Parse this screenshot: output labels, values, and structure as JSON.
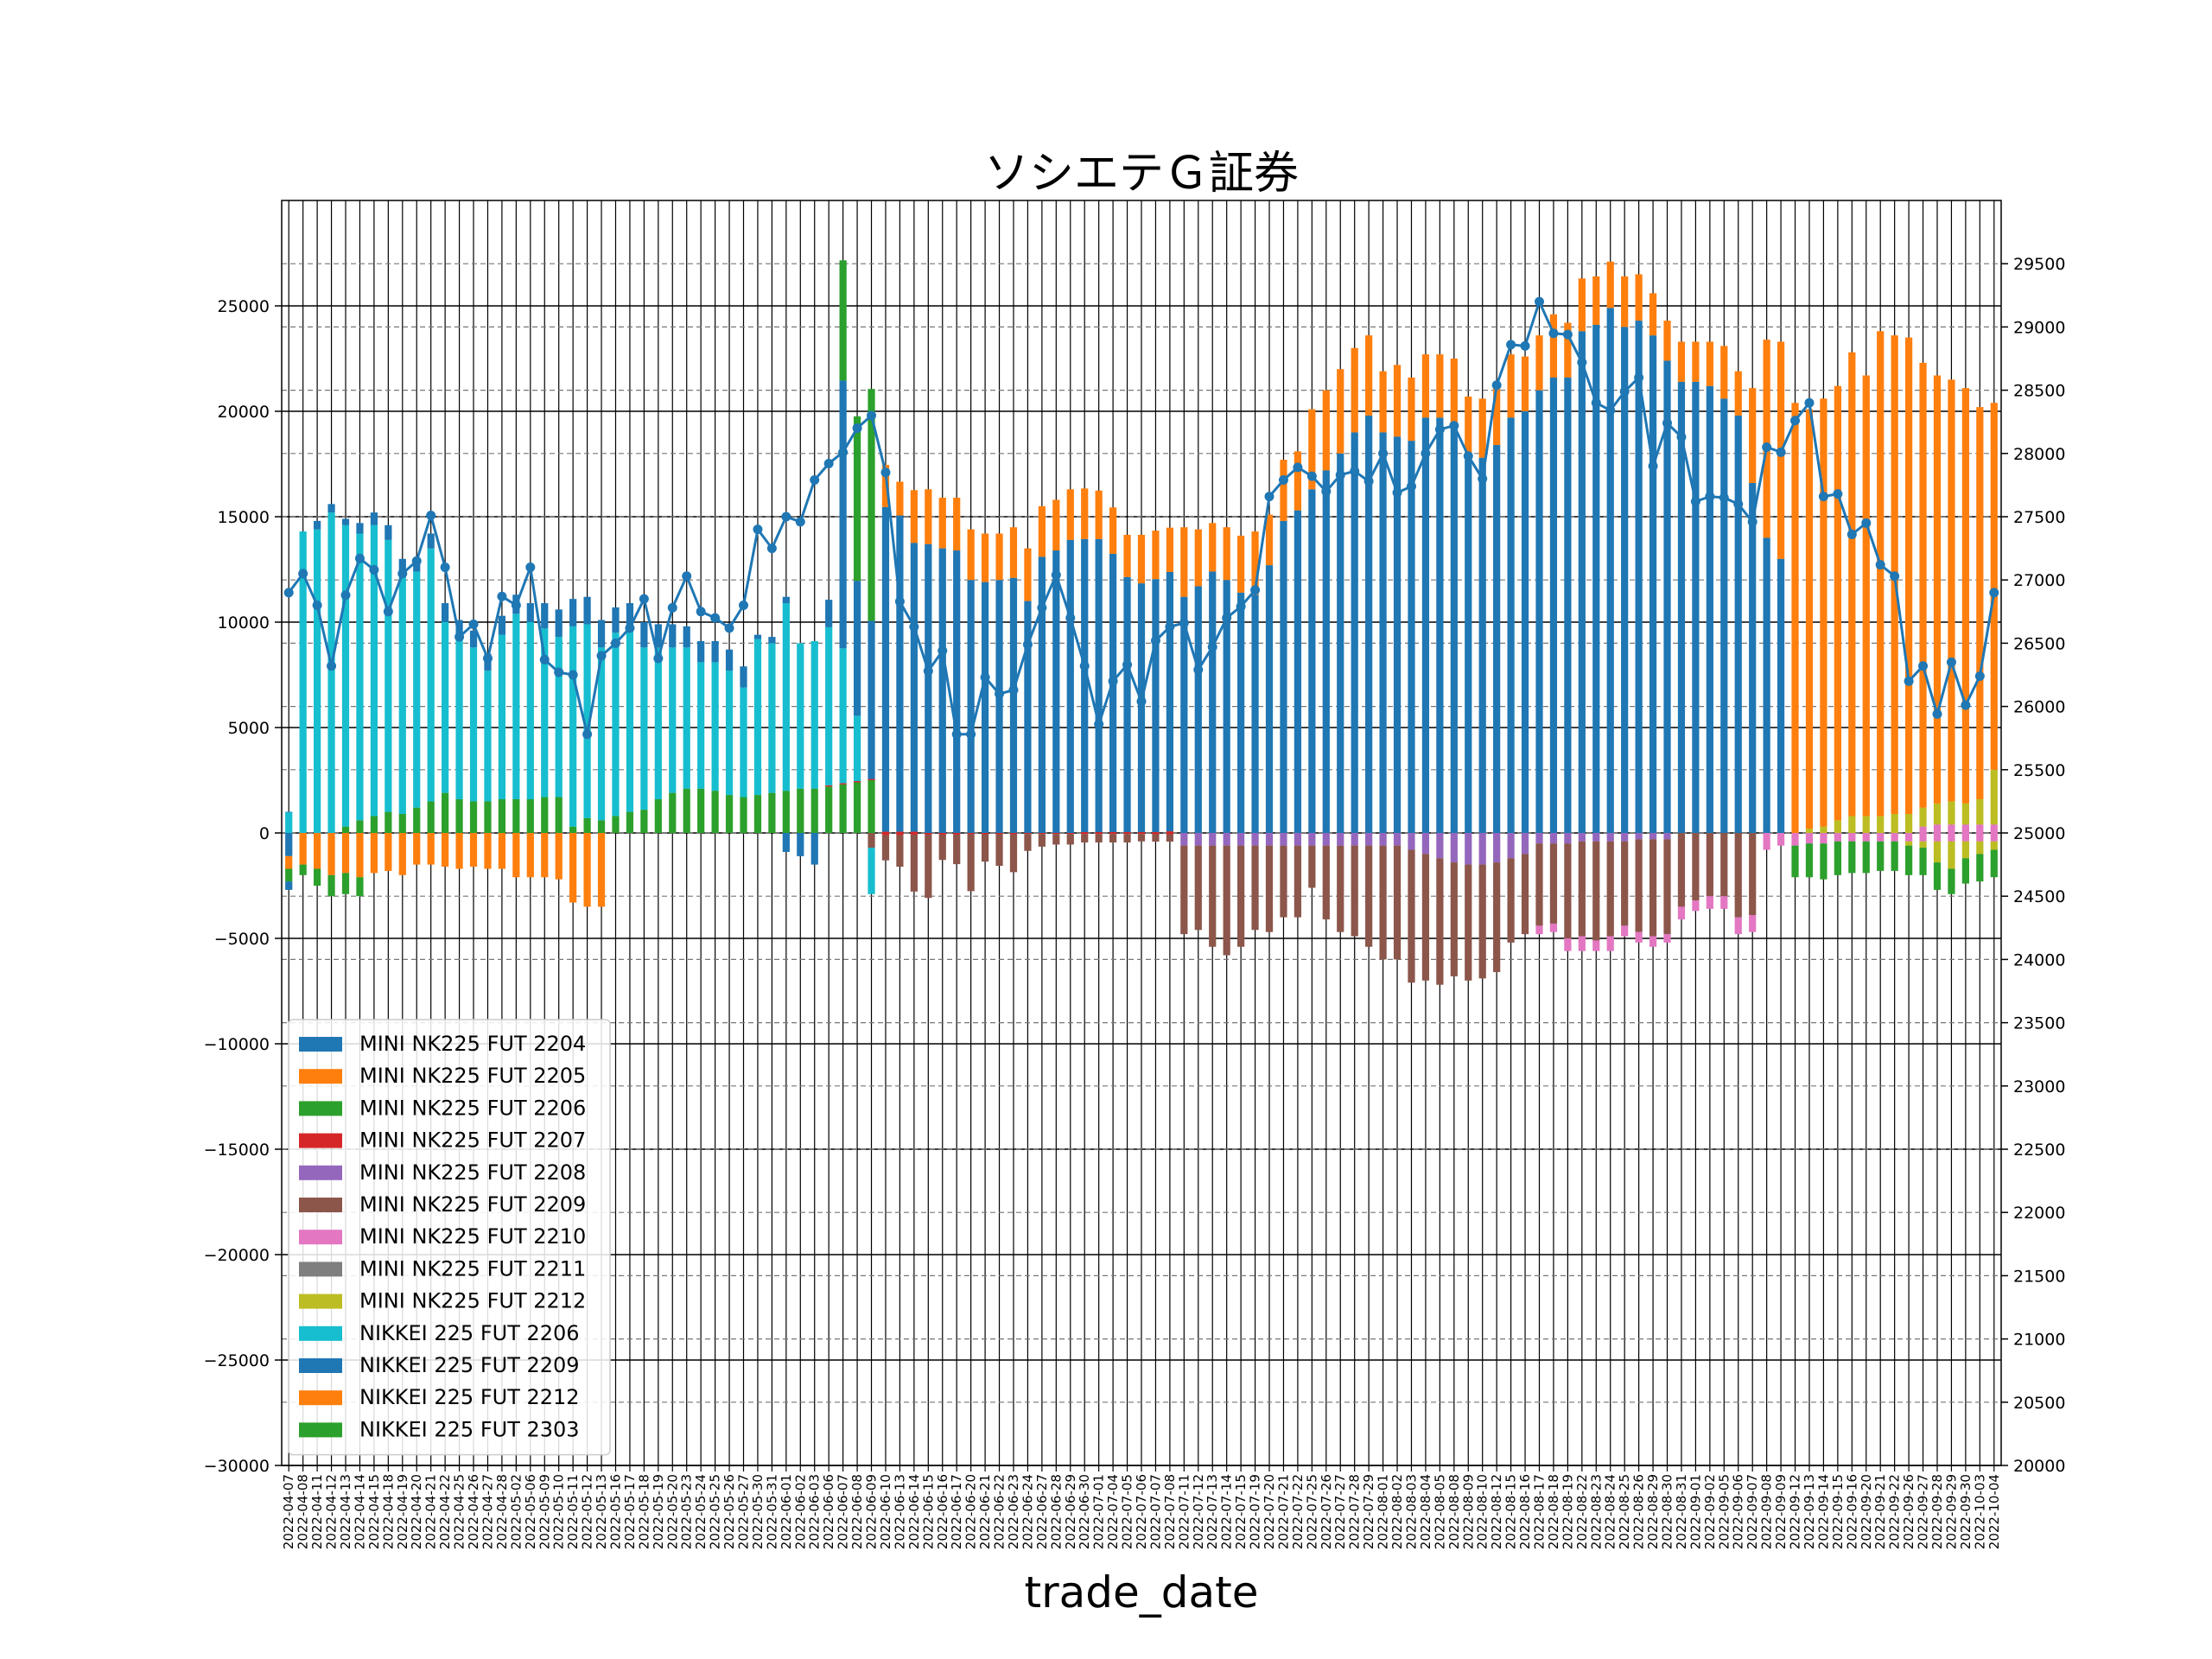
{
  "chart_data": {
    "type": "bar",
    "title": "ソシエテＧ証券",
    "xlabel": "trade_date",
    "ylabel": "",
    "ylim": [
      -30000,
      30000
    ],
    "y2lim": [
      20000,
      30000
    ],
    "y_ticks": [
      -30000,
      -25000,
      -20000,
      -15000,
      -10000,
      -5000,
      0,
      5000,
      10000,
      15000,
      20000,
      25000
    ],
    "y2_ticks": [
      20000,
      20500,
      21000,
      21500,
      22000,
      22500,
      23000,
      23500,
      24000,
      24500,
      25000,
      25500,
      26000,
      26500,
      27000,
      27500,
      28000,
      28500,
      29000,
      29500
    ],
    "grid": true,
    "legend_position": "lower-left",
    "stacked": true,
    "categories": [
      "2022-04-07",
      "2022-04-08",
      "2022-04-11",
      "2022-04-12",
      "2022-04-13",
      "2022-04-14",
      "2022-04-15",
      "2022-04-18",
      "2022-04-19",
      "2022-04-20",
      "2022-04-21",
      "2022-04-22",
      "2022-04-25",
      "2022-04-26",
      "2022-04-27",
      "2022-04-28",
      "2022-05-02",
      "2022-05-06",
      "2022-05-09",
      "2022-05-10",
      "2022-05-11",
      "2022-05-12",
      "2022-05-13",
      "2022-05-16",
      "2022-05-17",
      "2022-05-18",
      "2022-05-19",
      "2022-05-20",
      "2022-05-23",
      "2022-05-24",
      "2022-05-25",
      "2022-05-26",
      "2022-05-27",
      "2022-05-30",
      "2022-05-31",
      "2022-06-01",
      "2022-06-02",
      "2022-06-03",
      "2022-06-06",
      "2022-06-07",
      "2022-06-08",
      "2022-06-09",
      "2022-06-10",
      "2022-06-13",
      "2022-06-14",
      "2022-06-15",
      "2022-06-16",
      "2022-06-17",
      "2022-06-20",
      "2022-06-21",
      "2022-06-22",
      "2022-06-23",
      "2022-06-24",
      "2022-06-27",
      "2022-06-28",
      "2022-06-29",
      "2022-06-30",
      "2022-07-01",
      "2022-07-04",
      "2022-07-05",
      "2022-07-06",
      "2022-07-07",
      "2022-07-08",
      "2022-07-11",
      "2022-07-12",
      "2022-07-13",
      "2022-07-14",
      "2022-07-15",
      "2022-07-19",
      "2022-07-20",
      "2022-07-21",
      "2022-07-22",
      "2022-07-25",
      "2022-07-26",
      "2022-07-27",
      "2022-07-28",
      "2022-07-29",
      "2022-08-01",
      "2022-08-02",
      "2022-08-03",
      "2022-08-04",
      "2022-08-05",
      "2022-08-08",
      "2022-08-09",
      "2022-08-10",
      "2022-08-12",
      "2022-08-15",
      "2022-08-16",
      "2022-08-17",
      "2022-08-18",
      "2022-08-19",
      "2022-08-22",
      "2022-08-23",
      "2022-08-24",
      "2022-08-25",
      "2022-08-26",
      "2022-08-29",
      "2022-08-30",
      "2022-08-31",
      "2022-09-01",
      "2022-09-02",
      "2022-09-05",
      "2022-09-06",
      "2022-09-07",
      "2022-09-08",
      "2022-09-09",
      "2022-09-12",
      "2022-09-13",
      "2022-09-14",
      "2022-09-15",
      "2022-09-16",
      "2022-09-20",
      "2022-09-21",
      "2022-09-22",
      "2022-09-26",
      "2022-09-27",
      "2022-09-28",
      "2022-09-29",
      "2022-09-30",
      "2022-10-03",
      "2022-10-04"
    ],
    "series": [
      {
        "name": "MINI NK225 FUT 2204",
        "color": "#1f77b4",
        "pos": "0:0.7",
        "neg": "0:-1100"
      },
      {
        "name": "MINI NK225 FUT 2205",
        "color": "#ff7f0e",
        "pos": "",
        "neg": "0:-600,1:-1500,2:-1700,3:-2000,4:-1900,5:-2100,6:-1900,7:-1800,8:-2000,9:-1500,10:-1500,11:-1600,12:-1700,13:-1600,14:-1700,15:-1700,16:-2100,17:-2100,18:-2100,19:-2200,20:-3300,21:-3500,22:-3500"
      },
      {
        "name": "MINI NK225 FUT 2206",
        "color": "#2ca02c",
        "pos": "4:300,5:600,6:800,7:1000,8:900,9:1200,10:1500,11:1900,12:1600,13:1500,14:1500,15:1600,16:1600,17:1600,18:1700,19:1700,20:300,21:700,22:600,23:800,24:1000,25:1100,26:1600,27:1900,28:2100,29:2100,30:2000,31:1800,32:1700,33:1800,34:1900,35:2000,36:2100,37:2100,38:2200,39:2300,40:2400,41:2500",
        "neg": "0:-600,1:-500,2:-800,3:-1000,4:-1000,5:-900"
      },
      {
        "name": "MINI NK225 FUT 2207",
        "color": "#d62728",
        "pos": "38:60,39:60,40:60,41:60,42:60,43:60,44:60,56:40,57:40,58:40,59:40,60:40,61:40,62:80",
        "neg": "42:-100,43:-100,44:-80,45:-80,46:-80,47:-80,48:-60,49:-60,50:-60,51:-60,52:-50,53:-50,54:-50,55:-50,56:-50,57:-50,58:-50,59:-50,60:-50,61:-60,62:-60"
      },
      {
        "name": "MINI NK225 FUT 2208",
        "color": "#9467bd",
        "pos": "",
        "neg": "63:-600,64:-600,65:-600,66:-600,67:-600,68:-600,69:-600,70:-600,71:-600,72:-600,73:-600,74:-600,75:-600,76:-600,77:-600,78:-600,79:-800,80:-1000,81:-1200,82:-1400,83:-1500,84:-1500,85:-1400,86:-1200,87:-1000,88:-500,89:-500,90:-500,91:-400,92:-400,93:-400,94:-400,95:-300,96:-300,97:-300"
      },
      {
        "name": "MINI NK225 FUT 2209",
        "color": "#8c564b",
        "pos": "",
        "neg": "41:-700,42:-1200,43:-1500,44:-2700,45:-3000,46:-1200,47:-1400,48:-2700,49:-1300,50:-1500,51:-1800,52:-800,53:-600,54:-500,55:-500,56:-400,57:-400,58:-400,59:-400,60:-350,61:-350,62:-350,63:-4200,64:-4000,65:-4800,66:-5200,67:-4800,68:-4000,69:-4100,70:-3400,71:-3400,72:-2000,73:-3500,74:-4100,75:-4300,76:-4800,77:-5400,78:-5400,79:-6300,80:-6000,81:-6000,82:-5400,83:-5500,84:-5400,85:-5200,86:-4000,87:-3800,88:-3900,89:-3800,90:-4500,91:-4500,92:-4700,93:-4500,94:-4000,95:-4400,96:-4600,97:-4500,98:-3500,99:-3200,100:-3000,101:-3000,102:-4000,103:-3900"
      },
      {
        "name": "MINI NK225 FUT 2210",
        "color": "#e377c2",
        "pos": "115:300,116:400,117:400,118:400,119:400,120:400",
        "neg": "88:-400,89:-400,90:-600,91:-700,92:-500,93:-700,94:-500,95:-500,96:-500,97:-400,98:-600,99:-500,100:-600,101:-600,102:-800,103:-800,104:-800,105:-600,106:-600,107:-500,108:-500,109:-400,110:-400,111:-400,112:-400,113:-400,114:-400,115:-400,116:-400,117:-400,118:-400,119:-400,120:-400"
      },
      {
        "name": "MINI NK225 FUT 2211",
        "color": "#7f7f7f",
        "pos": "",
        "neg": ""
      },
      {
        "name": "MINI NK225 FUT 2212",
        "color": "#bcbd22",
        "pos": "107:200,108:300,109:600,110:800,111:800,112:800,113:900,114:900,115:900,116:1000,117:1100,118:1000,119:1200,120:2600",
        "neg": "114:-200,115:-300,116:-1000,117:-1300,118:-800,119:-600,120:-400"
      },
      {
        "name": "NIKKEI 225 FUT 2206",
        "color": "#17becf",
        "pos": "0:1000,1:14300,2:14400,3:15200,4:14300,5:13600,6:13800,7:12900,8:11400,9:11200,10:12000,11:8100,12:7600,13:7300,14:6200,15:7800,16:8800,17:8400,18:8000,19:7600,20:9500,21:9200,22:8200,23:8700,24:8700,25:7700,26:7200,27:6900,28:6700,29:6000,30:6100,31:5900,32:5200,33:7400,34:7100,35:8900,36:6900,37:7000,38:7500,39:6400,40:3100",
        "neg": "41:-2200"
      },
      {
        "name": "NIKKEI 225 FUT 2209",
        "color": "#1f77b4",
        "pos": "0:0.7,2:400,3:400,4:300,5:500,6:600,7:700,8:700,9:600,10:700,11:900,12:900,13:800,14:800,15:900,16:900,17:900,18:1200,19:1300,20:1300,21:1300,22:1300,23:1200,24:1200,25:1200,26:1100,27:1100,28:1000,29:1000,30:1000,31:1000,32:1000,33:200,34:300,35:300,38:1300,39:12700,40:6400,41:7500,42:15400,43:15000,44:13700,45:13700,46:13500,47:13400,48:12000,49:11900,50:12000,51:12100,52:11000,53:13100,54:13400,55:13900,56:13900,57:13900,58:13200,59:12100,60:11800,61:12000,62:12300,63:11200,64:11700,65:12400,66:12000,67:11400,68:11300,69:12700,70:14800,71:15300,72:16300,73:17200,74:18000,75:19000,76:19800,77:19000,78:18800,79:18600,80:19700,81:19700,82:19300,83:17900,84:17800,85:18400,86:19700,87:20000,88:21000,89:21600,90:21600,91:23800,92:24100,93:24900,94:24000,95:24300,96:23600,97:22400,98:21400,99:21400,100:21200,101:20600,102:19800,103:16600,104:14000,105:13000",
        "neg": "0:-400,35:-900,36:-1100,37:-1500"
      },
      {
        "name": "NIKKEI 225 FUT 2212",
        "color": "#ff7f0e",
        "pos": "42:2000,43:1600,44:2500,45:2600,46:2400,47:2500,48:2400,49:2300,50:2200,51:2400,52:2500,53:2400,54:2400,55:2400,56:2400,57:2300,58:2200,59:2000,60:2300,61:2300,62:2100,63:3300,64:2700,65:2300,66:2500,67:2700,68:3000,69:2400,70:2900,71:2800,72:3800,73:3800,74:4000,75:4000,76:3800,77:2900,78:3400,79:3000,80:3000,81:3000,82:3200,83:2800,84:2800,85:2900,86:3000,87:2600,88:2600,89:3000,90:2600,91:2500,92:2300,93:2200,94:2400,95:2200,96:2000,97:1900,98:1900,99:1900,100:2100,101:2500,102:2100,103:4500,104:9400,105:10300,106:20400,107:19900,108:20300,109:20600,110:22000,111:20900,112:23000,113:22700,114:22600,115:21100,116:20300,117:20000,118:19700,119:18600,120:17400",
        "neg": ""
      },
      {
        "name": "NIKKEI 225 FUT 2303",
        "color": "#2ca02c",
        "pos": "39:5700,40:7800,41:11000",
        "neg": "106:-1500,107:-1600,108:-1700,109:-1600,110:-1500,111:-1500,112:-1400,113:-1400,114:-1400,115:-1300,116:-1300,117:-1200,118:-1200,119:-1300,120:-1300"
      }
    ],
    "line": {
      "axis": "right",
      "color": "#1f77b4",
      "values": [
        26900,
        27050,
        26800,
        26320,
        26880,
        27170,
        27080,
        26750,
        27050,
        27150,
        27510,
        27100,
        26550,
        26650,
        26380,
        26870,
        26800,
        27100,
        26370,
        26270,
        26250,
        25780,
        26400,
        26500,
        26620,
        26850,
        26380,
        26780,
        27030,
        26750,
        26700,
        26620,
        26800,
        27400,
        27250,
        27500,
        27460,
        27790,
        27920,
        28010,
        28200,
        28300,
        27850,
        26830,
        26630,
        26280,
        26440,
        25780,
        25780,
        26230,
        26100,
        26130,
        26490,
        26780,
        27040,
        26700,
        26320,
        25860,
        26200,
        26330,
        26040,
        26520,
        26630,
        26660,
        26290,
        26470,
        26700,
        26790,
        26920,
        27660,
        27790,
        27890,
        27820,
        27700,
        27830,
        27860,
        27780,
        28000,
        27690,
        27740,
        28000,
        28190,
        28220,
        27980,
        27800,
        28540,
        28860,
        28850,
        29200,
        28950,
        28940,
        28720,
        28400,
        28340,
        28490,
        28600,
        27900,
        28240,
        28130,
        27620,
        27660,
        27650,
        27600,
        27460,
        28050,
        28010,
        28260,
        28400,
        27660,
        27680,
        27360,
        27450,
        27120,
        27030,
        26200,
        26320,
        25940,
        26350,
        26010,
        26240,
        26900
      ]
    }
  }
}
